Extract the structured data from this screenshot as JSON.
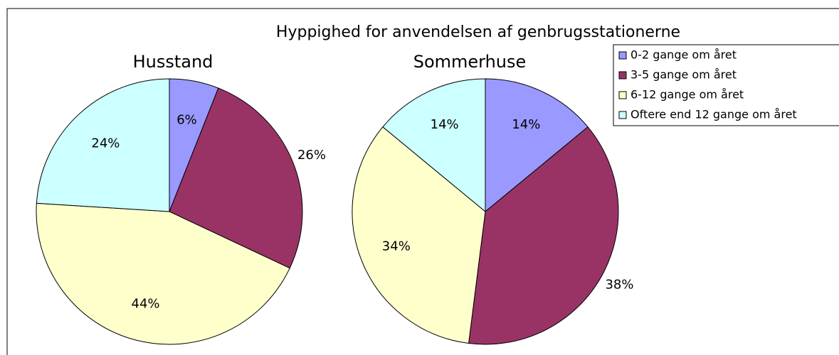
{
  "title": "Hyppighed for anvendelsen af genbrugsstationerne",
  "chart_data": [
    {
      "type": "pie",
      "title": "Husstand",
      "categories": [
        "0-2 gange om året",
        "3-5 gange om året",
        "6-12 gange om året",
        "Oftere end 12 gange om året"
      ],
      "values": [
        6,
        26,
        44,
        24
      ],
      "value_labels": [
        "6%",
        "26%",
        "44%",
        "24%"
      ],
      "colors": [
        "#9999ff",
        "#993366",
        "#ffffcc",
        "#ccffff"
      ],
      "legend": "right"
    },
    {
      "type": "pie",
      "title": "Sommerhuse",
      "categories": [
        "0-2 gange om året",
        "3-5 gange om året",
        "6-12 gange om året",
        "Oftere end 12 gange om året"
      ],
      "values": [
        14,
        38,
        34,
        14
      ],
      "value_labels": [
        "14%",
        "38%",
        "34%",
        "14%"
      ],
      "colors": [
        "#9999ff",
        "#993366",
        "#ffffcc",
        "#ccffff"
      ],
      "legend": "right"
    }
  ]
}
